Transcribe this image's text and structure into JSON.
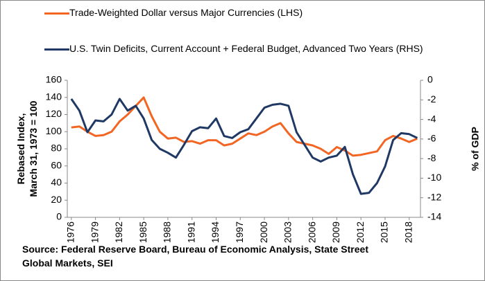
{
  "chart_data": {
    "type": "line",
    "ylabel": [
      "Rebased Index,",
      "March 31, 1973 = 100"
    ],
    "y2label": "% of GDP",
    "source": "Source: Federal Reserve Board, Bureau of Economic Analysis, State Street Global Markets, SEI",
    "x": [
      1976,
      1977,
      1978,
      1979,
      1980,
      1981,
      1982,
      1983,
      1984,
      1985,
      1986,
      1987,
      1988,
      1989,
      1990,
      1991,
      1992,
      1993,
      1994,
      1995,
      1996,
      1997,
      1998,
      1999,
      2000,
      2001,
      2002,
      2003,
      2004,
      2005,
      2006,
      2007,
      2008,
      2009,
      2010,
      2011,
      2012,
      2013,
      2014,
      2015,
      2016,
      2017,
      2018,
      2019
    ],
    "xlim": [
      1975.5,
      2019.4
    ],
    "xticks": [
      1976,
      1979,
      1982,
      1985,
      1988,
      1991,
      1994,
      1997,
      2000,
      2003,
      2006,
      2009,
      2012,
      2015,
      2018
    ],
    "ylim": [
      0,
      160
    ],
    "yticks": [
      0,
      20,
      40,
      60,
      80,
      100,
      120,
      140,
      160
    ],
    "y2lim": [
      -14,
      0
    ],
    "y2ticks": [
      0,
      -2,
      -4,
      -6,
      -8,
      -10,
      -12,
      -14
    ],
    "series": [
      {
        "name": "Trade-Weighted Dollar versus Major Currencies (LHS)",
        "color": "#f26522",
        "values": [
          105,
          106,
          100,
          95,
          96,
          100,
          112,
          120,
          130,
          140,
          118,
          100,
          92,
          93,
          88,
          89,
          86,
          90,
          90,
          84,
          86,
          92,
          98,
          96,
          100,
          106,
          110,
          98,
          88,
          86,
          84,
          80,
          74,
          82,
          78,
          72,
          73,
          75,
          77,
          90,
          95,
          92,
          88,
          92
        ]
      },
      {
        "name": "U.S. Twin Deficits, Current Account + Federal Budget, Advanced Two Years (RHS)",
        "color": "#1f3864",
        "axis": "y2",
        "values": [
          -1.9,
          -3.1,
          -5.3,
          -4.1,
          -4.2,
          -3.5,
          -1.9,
          -3.1,
          -2.6,
          -3.9,
          -6.1,
          -7,
          -7.4,
          -7.9,
          -6.6,
          -5.2,
          -4.8,
          -4.9,
          -3.9,
          -5.7,
          -5.9,
          -5.3,
          -5,
          -3.9,
          -2.8,
          -2.5,
          -2.4,
          -2.6,
          -5.3,
          -6.6,
          -7.9,
          -8.3,
          -7.9,
          -7.7,
          -6.8,
          -9.6,
          -11.6,
          -11.5,
          -10.5,
          -8.8,
          -6.1,
          -5.4,
          -5.5,
          -5.9
        ]
      }
    ]
  }
}
